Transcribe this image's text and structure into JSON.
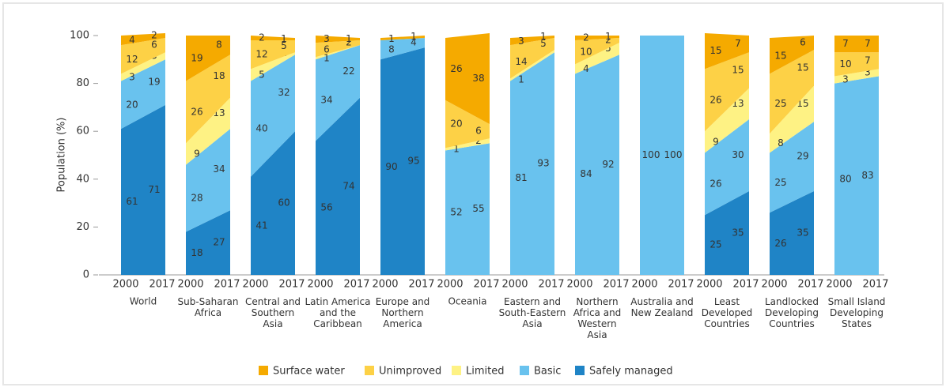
{
  "chart_data": {
    "type": "bar",
    "ylabel": "Population (%)",
    "years": [
      "2000",
      "2017"
    ],
    "categories": [
      "World",
      "Sub-Saharan\nAfrica",
      "Central and\nSouthern\nAsia",
      "Latin America\nand the\nCaribbean",
      "Europe and\nNorthern\nAmerica",
      "Oceania",
      "Eastern and\nSouth-Eastern\nAsia",
      "Northern\nAfrica and\nWestern\nAsia",
      "Australia and\nNew Zealand",
      "Least\nDeveloped\nCountries",
      "Landlocked\nDeveloping\nCountries",
      "Small Island\nDeveloping\nStates"
    ],
    "series": [
      {
        "name": "Safely managed",
        "color": "#1f84c6",
        "text_color": "#ffffff",
        "values": [
          [
            61,
            71
          ],
          [
            18,
            27
          ],
          [
            41,
            60
          ],
          [
            56,
            74
          ],
          [
            90,
            95
          ],
          [
            null,
            null
          ],
          [
            null,
            null
          ],
          [
            null,
            null
          ],
          [
            null,
            null
          ],
          [
            25,
            35
          ],
          [
            26,
            35
          ],
          [
            null,
            null
          ]
        ]
      },
      {
        "name": "Basic",
        "color": "#69c2ee",
        "text_color": "#ffffff",
        "values": [
          [
            20,
            19
          ],
          [
            28,
            34
          ],
          [
            40,
            32
          ],
          [
            34,
            22
          ],
          [
            8,
            4
          ],
          [
            52,
            55
          ],
          [
            81,
            93
          ],
          [
            84,
            92
          ],
          [
            100,
            100
          ],
          [
            26,
            30
          ],
          [
            25,
            29
          ],
          [
            80,
            83
          ]
        ]
      },
      {
        "name": "Limited",
        "color": "#fef284",
        "text_color": "#7a4a00",
        "values": [
          [
            3,
            3
          ],
          [
            9,
            13
          ],
          [
            5,
            1
          ],
          [
            1,
            0
          ],
          [
            null,
            null
          ],
          [
            1,
            2
          ],
          [
            1,
            1
          ],
          [
            4,
            5
          ],
          [
            null,
            null
          ],
          [
            9,
            13
          ],
          [
            8,
            15
          ],
          [
            3,
            3
          ]
        ]
      },
      {
        "name": "Unimproved",
        "color": "#fdd146",
        "text_color": "#7a4a00",
        "values": [
          [
            12,
            6
          ],
          [
            26,
            18
          ],
          [
            12,
            5
          ],
          [
            6,
            2
          ],
          [
            null,
            null
          ],
          [
            20,
            6
          ],
          [
            14,
            5
          ],
          [
            10,
            2
          ],
          [
            null,
            null
          ],
          [
            26,
            15
          ],
          [
            25,
            15
          ],
          [
            10,
            7
          ]
        ]
      },
      {
        "name": "Surface water",
        "color": "#f5aa00",
        "text_color": "#7a4a00",
        "values": [
          [
            4,
            2
          ],
          [
            19,
            8
          ],
          [
            2,
            1
          ],
          [
            3,
            1
          ],
          [
            1,
            1
          ],
          [
            26,
            38
          ],
          [
            3,
            1
          ],
          [
            2,
            1
          ],
          [
            null,
            null
          ],
          [
            15,
            7
          ],
          [
            15,
            6
          ],
          [
            7,
            7
          ]
        ]
      }
    ],
    "legend_order": [
      4,
      3,
      2,
      1,
      0
    ],
    "ylim": [
      0,
      100
    ],
    "yticks": [
      0,
      20,
      40,
      60,
      80,
      100
    ]
  }
}
